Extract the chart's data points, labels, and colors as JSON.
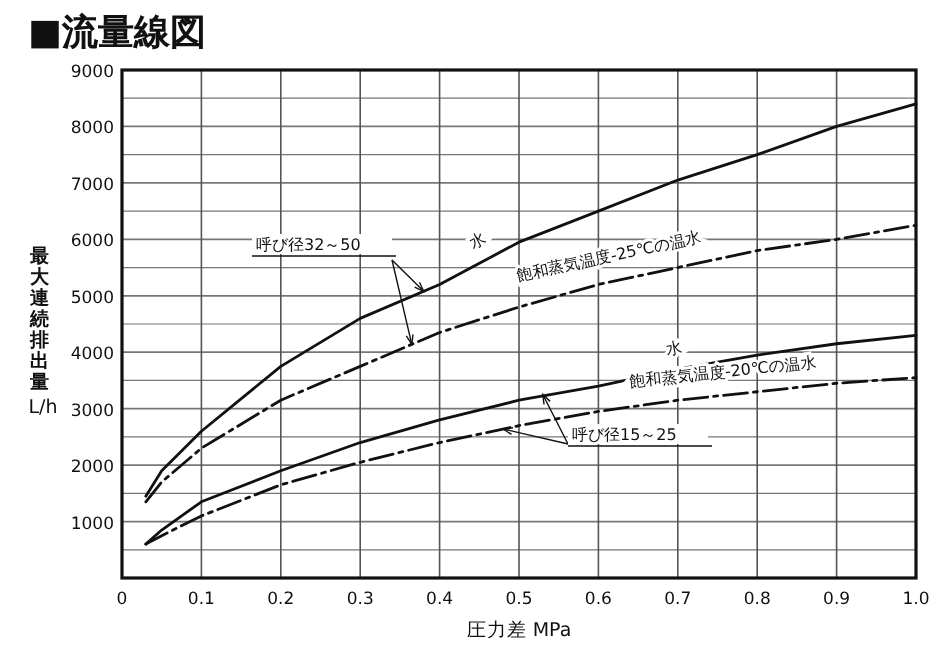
{
  "chart_data": {
    "type": "line",
    "title": "■流量線図",
    "xlabel": "圧力差 MPa",
    "ylabel": "最大連続排出量 L/h",
    "x": [
      0.03,
      0.05,
      0.1,
      0.2,
      0.3,
      0.4,
      0.5,
      0.6,
      0.7,
      0.8,
      0.9,
      1.0
    ],
    "series": [
      {
        "name": "水",
        "color": "#111111",
        "line_style": "solid",
        "values": [
          1450,
          1900,
          2600,
          3750,
          4600,
          5200,
          5950,
          6500,
          7050,
          7500,
          8000,
          8400
        ]
      },
      {
        "name": "飽和蒸気温度-25℃の温水",
        "color": "#111111",
        "line_style": "dashed",
        "values": [
          1350,
          1700,
          2300,
          3150,
          3750,
          4350,
          4800,
          5200,
          5500,
          5800,
          6000,
          6250
        ]
      },
      {
        "name": "水",
        "color": "#111111",
        "line_style": "solid",
        "values": [
          600,
          850,
          1350,
          1900,
          2400,
          2800,
          3150,
          3400,
          3700,
          3950,
          4150,
          4300
        ]
      },
      {
        "name": "飽和蒸気温度-20℃の温水",
        "color": "#111111",
        "line_style": "dashed",
        "values": [
          600,
          750,
          1100,
          1650,
          2050,
          2400,
          2700,
          2950,
          3150,
          3300,
          3450,
          3550
        ]
      }
    ],
    "annotations": [
      "呼び径32～50",
      {
        "text": "呼び径15～25",
        "x": 0.53,
        "y": 3250
      }
    ],
    "xlim": [
      0,
      1
    ],
    "ylim": [
      0,
      9000
    ],
    "xticks": [
      {
        "value": 0,
        "label": "0"
      },
      0.1,
      0.2,
      0.3,
      0.4,
      0.5,
      0.6,
      0.7,
      0.8,
      0.9,
      {
        "value": 1,
        "label": "1.0"
      }
    ],
    "yticks": [
      {
        "value": 0,
        "label": null
      },
      {
        "value": 500,
        "label": null
      },
      1000,
      {
        "value": 1500,
        "label": null
      },
      2000,
      {
        "value": 2500,
        "label": null
      },
      3000,
      {
        "value": 3500,
        "label": null
      },
      4000,
      {
        "value": 4500,
        "label": null
      },
      5000,
      {
        "value": 5500,
        "label": null
      },
      6000,
      {
        "value": 6500,
        "label": null
      },
      7000,
      {
        "value": 7500,
        "label": null
      },
      8000,
      {
        "value": 8500,
        "label": null
      },
      9000
    ],
    "grid": true,
    "legend": false,
    "marker": "none"
  }
}
